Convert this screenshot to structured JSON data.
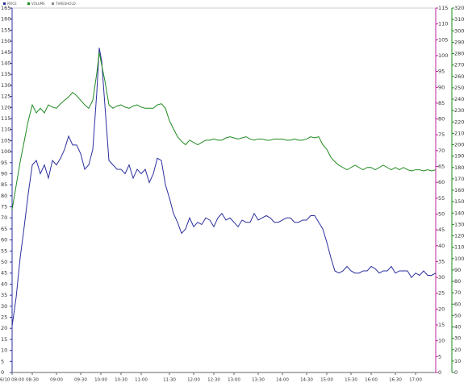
{
  "chart_data": {
    "type": "line",
    "legend": [
      {
        "name": "PRICE",
        "color": "#2b2f9e"
      },
      {
        "name": "VOLUME",
        "color": "#1f8a1f"
      },
      {
        "name": "THRESHOLD",
        "color": "#888888"
      }
    ],
    "x": [
      0,
      5,
      10,
      15,
      20,
      25,
      30,
      35,
      40,
      45,
      50,
      55,
      60,
      65,
      70,
      75,
      80,
      85,
      90,
      95,
      100,
      105,
      108,
      111,
      115,
      120,
      125,
      130,
      135,
      140,
      145,
      150,
      155,
      160,
      165,
      170,
      175,
      180,
      185,
      190,
      195,
      200,
      205,
      210,
      215,
      220,
      225,
      230,
      235,
      240,
      245,
      250,
      255,
      260,
      265,
      270,
      275,
      280,
      285,
      290,
      295,
      300,
      305,
      310,
      315,
      320,
      325,
      330,
      335,
      340,
      345,
      350,
      355,
      360,
      365,
      370,
      375,
      380,
      385,
      390,
      395,
      400,
      405,
      410,
      415,
      420,
      425,
      430,
      435,
      440,
      445,
      450,
      455,
      460,
      465,
      470,
      475,
      480,
      485,
      490,
      495,
      500,
      505,
      510,
      515,
      520,
      525
    ],
    "xlim": [
      0,
      525
    ],
    "xticks": [
      {
        "value": 0,
        "label": "6/10 08:00"
      },
      {
        "value": 25,
        "label": "08:30"
      },
      {
        "value": 55,
        "label": "09:00"
      },
      {
        "value": 85,
        "label": "09:30"
      },
      {
        "value": 110,
        "label": "10:00"
      },
      {
        "value": 135,
        "label": "10:30"
      },
      {
        "value": 160,
        "label": "11:00"
      },
      {
        "value": 195,
        "label": "11:30"
      },
      {
        "value": 225,
        "label": "12:00"
      },
      {
        "value": 250,
        "label": "12:30"
      },
      {
        "value": 275,
        "label": "13:00"
      },
      {
        "value": 305,
        "label": "13:30"
      },
      {
        "value": 335,
        "label": "14:00"
      },
      {
        "value": 365,
        "label": "14:30"
      },
      {
        "value": 390,
        "label": "15:00"
      },
      {
        "value": 420,
        "label": "15:30"
      },
      {
        "value": 445,
        "label": "16:00"
      },
      {
        "value": 475,
        "label": "16:30"
      },
      {
        "value": 500,
        "label": "17:00"
      }
    ],
    "ylim": [
      0,
      165
    ],
    "yticks": [
      0,
      5,
      10,
      15,
      20,
      25,
      30,
      35,
      40,
      45,
      50,
      55,
      60,
      65,
      70,
      75,
      80,
      85,
      90,
      95,
      100,
      105,
      110,
      115,
      120,
      125,
      130,
      135,
      140,
      145,
      150,
      155,
      160,
      165
    ],
    "y2lim": [
      0,
      115
    ],
    "y2ticks": [
      0,
      5,
      10,
      15,
      20,
      25,
      30,
      35,
      40,
      45,
      50,
      55,
      60,
      65,
      70,
      75,
      80,
      85,
      90,
      95,
      100,
      105,
      110,
      115
    ],
    "y3lim": [
      0,
      320
    ],
    "y3ticks": [
      0,
      10,
      20,
      30,
      40,
      50,
      60,
      70,
      80,
      90,
      100,
      110,
      120,
      130,
      140,
      150,
      160,
      170,
      180,
      190,
      200,
      210,
      220,
      230,
      240,
      250,
      260,
      270,
      280,
      290,
      300,
      310,
      320
    ],
    "series": [
      {
        "color": "#2b2f9e",
        "values": [
          21,
          34,
          52,
          66,
          81,
          94,
          96,
          90,
          94,
          88,
          96,
          94,
          97,
          101,
          107,
          103,
          103,
          99,
          92,
          94,
          101,
          127,
          147,
          141,
          121,
          96,
          94,
          92,
          92,
          90,
          94,
          88,
          92,
          90,
          92,
          86,
          90,
          97,
          96,
          85,
          79,
          72,
          68,
          63,
          65,
          70,
          66,
          68,
          67,
          70,
          69,
          66,
          70,
          72,
          69,
          70,
          68,
          66,
          69,
          68,
          68,
          72,
          69,
          70,
          71,
          70,
          68,
          68,
          69,
          70,
          70,
          68,
          68,
          69,
          69,
          71,
          71,
          68,
          65,
          59,
          52,
          46,
          45,
          46,
          48,
          46,
          45,
          45,
          46,
          46,
          48,
          47,
          45,
          46,
          46,
          48,
          45,
          46,
          46,
          46,
          43,
          45,
          44,
          46,
          44,
          44,
          45
        ]
      },
      {
        "color": "#1f8a1f",
        "axis": "y3",
        "values": [
          143,
          164,
          185,
          203,
          221,
          235,
          228,
          232,
          228,
          235,
          233,
          232,
          236,
          239,
          242,
          246,
          243,
          239,
          235,
          232,
          239,
          263,
          281,
          270,
          256,
          235,
          232,
          234,
          235,
          233,
          232,
          234,
          235,
          233,
          232,
          232,
          232,
          235,
          236,
          232,
          221,
          214,
          207,
          203,
          200,
          204,
          202,
          200,
          202,
          204,
          204,
          205,
          204,
          204,
          206,
          207,
          206,
          205,
          206,
          207,
          205,
          204,
          205,
          205,
          204,
          204,
          205,
          205,
          205,
          204,
          204,
          205,
          204,
          204,
          205,
          207,
          206,
          207,
          200,
          196,
          189,
          185,
          182,
          180,
          178,
          180,
          182,
          180,
          178,
          180,
          180,
          178,
          180,
          182,
          180,
          178,
          180,
          178,
          180,
          178,
          177,
          178,
          178,
          177,
          178,
          177,
          178
        ]
      }
    ]
  }
}
